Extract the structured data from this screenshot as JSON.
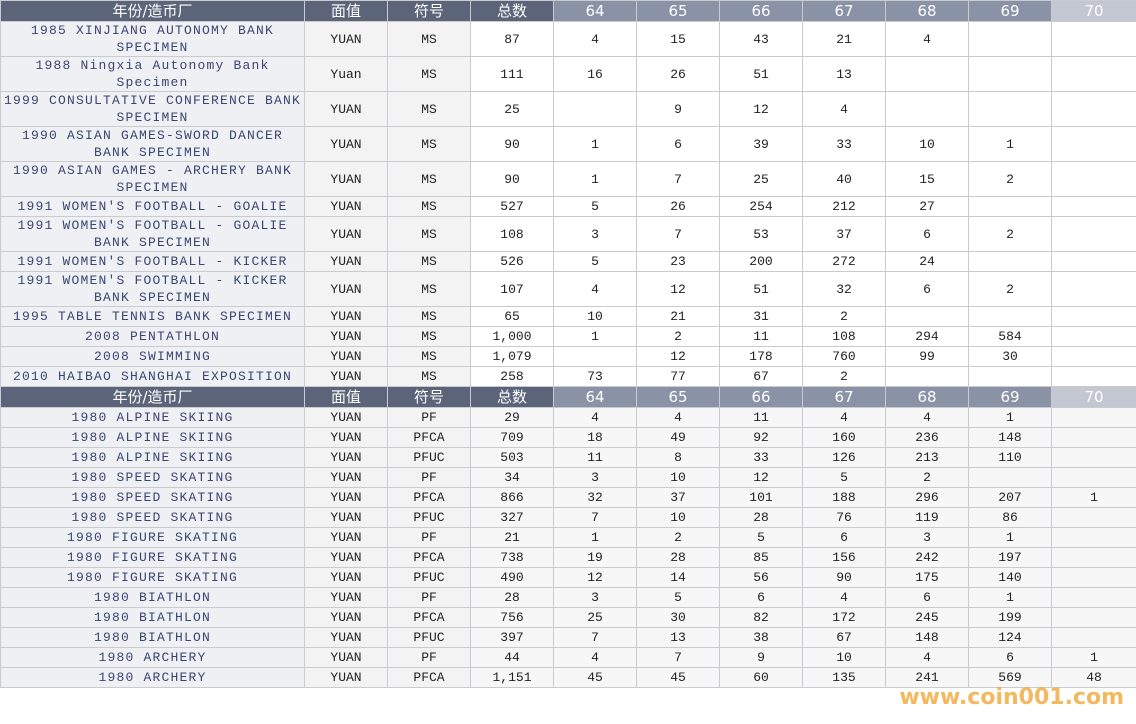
{
  "tables": [
    {
      "header": [
        "年份/造币厂",
        "面值",
        "符号",
        "总数",
        "64",
        "65",
        "66",
        "67",
        "68",
        "69",
        "70"
      ],
      "rows": [
        [
          "1985 XINJIANG AUTONOMY BANK SPECIMEN",
          "YUAN",
          "MS",
          87,
          4,
          15,
          43,
          21,
          4,
          null,
          null
        ],
        [
          "1988 Ningxia Autonomy Bank Specimen",
          "Yuan",
          "MS",
          111,
          16,
          26,
          51,
          13,
          null,
          null,
          null
        ],
        [
          "1999 CONSULTATIVE CONFERENCE BANK SPECIMEN",
          "YUAN",
          "MS",
          25,
          null,
          9,
          12,
          4,
          null,
          null,
          null
        ],
        [
          "1990 ASIAN GAMES-SWORD DANCER BANK SPECIMEN",
          "YUAN",
          "MS",
          90,
          1,
          6,
          39,
          33,
          10,
          1,
          null
        ],
        [
          "1990 ASIAN GAMES - ARCHERY BANK SPECIMEN",
          "YUAN",
          "MS",
          90,
          1,
          7,
          25,
          40,
          15,
          2,
          null
        ],
        [
          "1991 WOMEN'S FOOTBALL - GOALIE",
          "YUAN",
          "MS",
          527,
          5,
          26,
          254,
          212,
          27,
          null,
          null
        ],
        [
          "1991 WOMEN'S FOOTBALL - GOALIE BANK SPECIMEN",
          "YUAN",
          "MS",
          108,
          3,
          7,
          53,
          37,
          6,
          2,
          null
        ],
        [
          "1991 WOMEN'S FOOTBALL - KICKER",
          "YUAN",
          "MS",
          526,
          5,
          23,
          200,
          272,
          24,
          null,
          null
        ],
        [
          "1991 WOMEN'S FOOTBALL - KICKER BANK SPECIMEN",
          "YUAN",
          "MS",
          107,
          4,
          12,
          51,
          32,
          6,
          2,
          null
        ],
        [
          "1995 TABLE TENNIS BANK SPECIMEN",
          "YUAN",
          "MS",
          65,
          10,
          21,
          31,
          2,
          null,
          null,
          null
        ],
        [
          "2008 PENTATHLON",
          "YUAN",
          "MS",
          "1,000",
          1,
          2,
          11,
          108,
          294,
          584,
          null
        ],
        [
          "2008 SWIMMING",
          "YUAN",
          "MS",
          "1,079",
          null,
          12,
          178,
          760,
          99,
          30,
          null
        ],
        [
          "2010 HAIBAO SHANGHAI EXPOSITION",
          "YUAN",
          "MS",
          258,
          73,
          77,
          67,
          2,
          null,
          null,
          null
        ]
      ]
    },
    {
      "header": [
        "年份/造币厂",
        "面值",
        "符号",
        "总数",
        "64",
        "65",
        "66",
        "67",
        "68",
        "69",
        "70"
      ],
      "rows": [
        [
          "1980 ALPINE SKIING",
          "YUAN",
          "PF",
          29,
          4,
          4,
          11,
          4,
          4,
          1,
          null
        ],
        [
          "1980 ALPINE SKIING",
          "YUAN",
          "PFCA",
          709,
          18,
          49,
          92,
          160,
          236,
          148,
          null
        ],
        [
          "1980 ALPINE SKIING",
          "YUAN",
          "PFUC",
          503,
          11,
          8,
          33,
          126,
          213,
          110,
          null
        ],
        [
          "1980 SPEED SKATING",
          "YUAN",
          "PF",
          34,
          3,
          10,
          12,
          5,
          2,
          null,
          null
        ],
        [
          "1980 SPEED SKATING",
          "YUAN",
          "PFCA",
          866,
          32,
          37,
          101,
          188,
          296,
          207,
          1
        ],
        [
          "1980 SPEED SKATING",
          "YUAN",
          "PFUC",
          327,
          7,
          10,
          28,
          76,
          119,
          86,
          null
        ],
        [
          "1980 FIGURE SKATING",
          "YUAN",
          "PF",
          21,
          1,
          2,
          5,
          6,
          3,
          1,
          null
        ],
        [
          "1980 FIGURE SKATING",
          "YUAN",
          "PFCA",
          738,
          19,
          28,
          85,
          156,
          242,
          197,
          null
        ],
        [
          "1980 FIGURE SKATING",
          "YUAN",
          "PFUC",
          490,
          12,
          14,
          56,
          90,
          175,
          140,
          null
        ],
        [
          "1980 BIATHLON",
          "YUAN",
          "PF",
          28,
          3,
          5,
          6,
          4,
          6,
          1,
          null
        ],
        [
          "1980 BIATHLON",
          "YUAN",
          "PFCA",
          756,
          25,
          30,
          82,
          172,
          245,
          199,
          null
        ],
        [
          "1980 BIATHLON",
          "YUAN",
          "PFUC",
          397,
          7,
          13,
          38,
          67,
          148,
          124,
          null
        ],
        [
          "1980 ARCHERY",
          "YUAN",
          "PF",
          44,
          4,
          7,
          9,
          10,
          4,
          6,
          1
        ],
        [
          "1980 ARCHERY",
          "YUAN",
          "PFCA",
          "1,151",
          45,
          45,
          60,
          135,
          241,
          569,
          48
        ]
      ]
    }
  ],
  "watermark": "www.coin001.com"
}
